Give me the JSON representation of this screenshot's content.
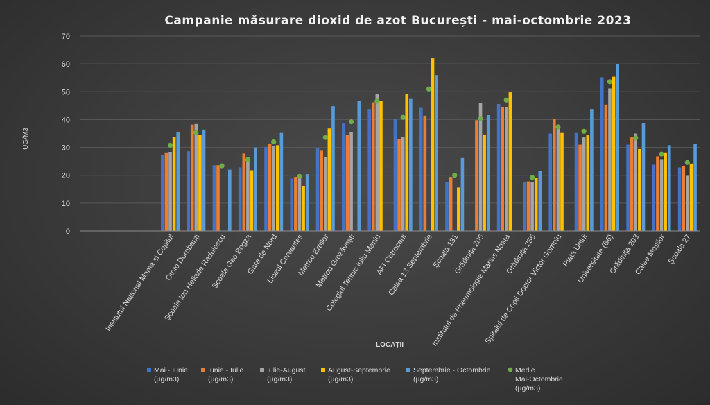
{
  "chart_data": {
    "type": "bar",
    "title": "Campanie măsurare dioxid de azot București  - mai-octombrie 2023",
    "xlabel": "LOCAȚII",
    "ylabel": "UG/M3",
    "ylim": [
      0,
      70
    ],
    "yticks": [
      0,
      10,
      20,
      30,
      40,
      50,
      60,
      70
    ],
    "grid": true,
    "legend_position": "bottom",
    "categories": [
      "Institutul Național Mama și Copilul",
      "Ototo Dorobanți",
      "Școala Ion Heliade Radulescu",
      "Școala Geo Bogza",
      "Gara de Nord",
      "Liceul Cervantes",
      "Metrou Eroilor",
      "Metrou Grozăvești",
      "Colegiul Tehnic Iuliu Maniu",
      "AFI Cotroceni",
      "Calea 13 Septembrie",
      "Școala 131",
      "Grădinița 205",
      "Institutul de Pneumologie Marius Nasta",
      "Grădinița 255",
      "Spitalul de Copii Doctor Victor Gomoiu",
      "Piața Unirii",
      "Universitate (B6)",
      "Grădinița 203",
      "Calea Moșilor",
      "Școala 27"
    ],
    "series": [
      {
        "name": "Mai - Iunie (µg/m3)",
        "color": "#4472c4",
        "values": [
          27.2,
          28.6,
          23.6,
          22.8,
          30.2,
          18.8,
          29.8,
          38.8,
          43.8,
          40.2,
          44.2,
          17.6,
          null,
          45.6,
          17.6,
          35.0,
          35.2,
          55.2,
          31.0,
          23.8,
          22.8
        ]
      },
      {
        "name": "Iunie - Iulie (µg/m3)",
        "color": "#ed7d31",
        "values": [
          28.2,
          38.2,
          23.6,
          27.8,
          31.4,
          19.4,
          28.8,
          34.4,
          46.2,
          33.0,
          41.4,
          19.4,
          39.8,
          44.6,
          17.8,
          40.2,
          31.0,
          45.4,
          33.6,
          26.8,
          23.2
        ]
      },
      {
        "name": "Iulie-August (µg/m3)",
        "color": "#a5a5a5",
        "values": [
          28.4,
          38.4,
          null,
          26.6,
          30.4,
          19.0,
          26.6,
          35.6,
          49.2,
          33.8,
          null,
          null,
          46.0,
          44.6,
          17.6,
          37.6,
          33.6,
          51.2,
          35.0,
          25.8,
          19.8
        ]
      },
      {
        "name": "August-Septembrie (µg/m3)",
        "color": "#ffc000",
        "values": [
          33.8,
          34.4,
          null,
          21.8,
          30.8,
          16.2,
          36.8,
          null,
          46.6,
          49.2,
          62.0,
          15.6,
          34.4,
          49.8,
          19.0,
          35.2,
          34.6,
          55.4,
          29.4,
          28.2,
          24.2
        ]
      },
      {
        "name": "Septembrie - Octombrie (µg/m3)",
        "color": "#5b9bd5",
        "values": [
          35.6,
          36.4,
          22.0,
          30.0,
          35.2,
          20.4,
          44.8,
          46.8,
          null,
          47.4,
          56.0,
          26.2,
          41.6,
          null,
          21.6,
          null,
          43.8,
          60.0,
          38.6,
          30.8,
          31.4
        ]
      },
      {
        "name": "Medie Mai-Octombrie (µg/m3)",
        "color": "#70ad47",
        "type": "scatter",
        "values": [
          30.8,
          35.4,
          23.4,
          25.6,
          32.0,
          19.6,
          33.6,
          39.2,
          46.6,
          40.8,
          51.0,
          20.0,
          40.4,
          47.0,
          19.2,
          37.4,
          35.8,
          53.6,
          33.4,
          27.6,
          24.6
        ]
      }
    ],
    "legend": [
      {
        "lines": [
          "Mai - Iunie",
          "(µg/m3)"
        ]
      },
      {
        "lines": [
          "Iunie - Iulie",
          "(µg/m3)"
        ]
      },
      {
        "lines": [
          "Iulie-August",
          "(µg/m3)"
        ]
      },
      {
        "lines": [
          "August-Septembrie",
          "(µg/m3)"
        ]
      },
      {
        "lines": [
          "Septembrie - Octombrie",
          "(µg/m3)"
        ]
      },
      {
        "lines": [
          "Medie",
          "Mai-Octombrie",
          "(µg/m3)"
        ]
      }
    ]
  }
}
